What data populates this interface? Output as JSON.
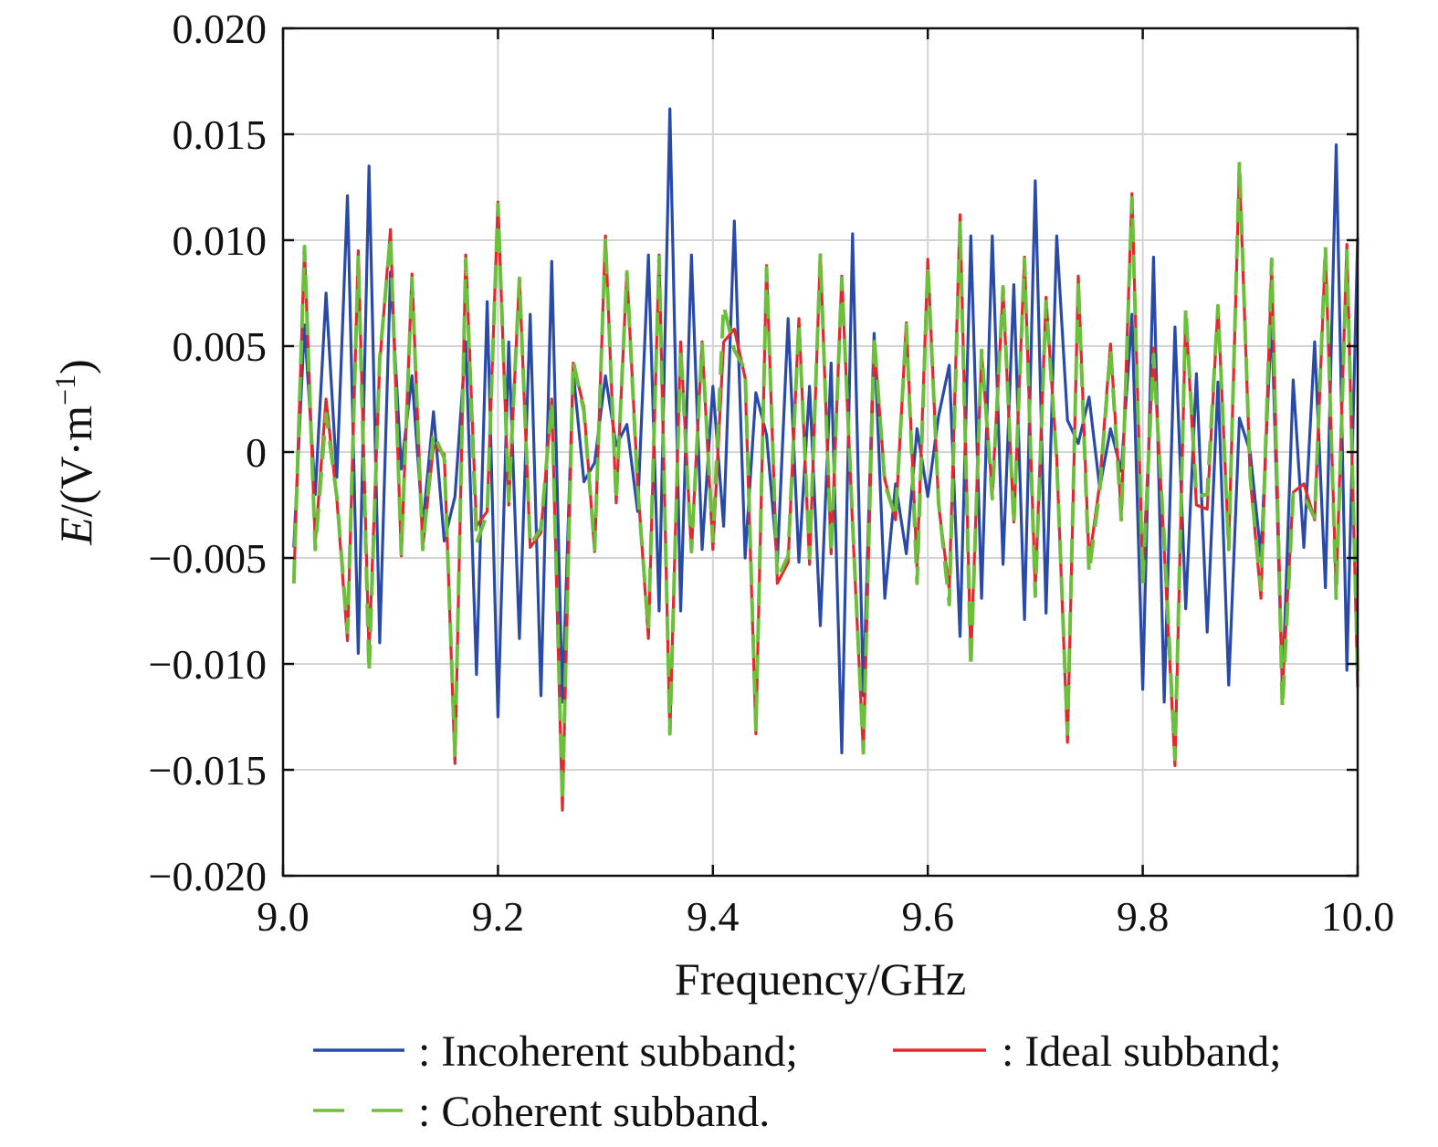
{
  "chart_data": {
    "type": "line",
    "title": "",
    "xlabel": "Frequency/GHz",
    "ylabel": "E/(V·m⁻¹)",
    "ylabel_parts": {
      "symbol": "E",
      "unit_open": "/(V·m",
      "exponent": "−1",
      "unit_close": ")"
    },
    "xlim": [
      9.0,
      10.0
    ],
    "ylim": [
      -0.02,
      0.02
    ],
    "x_ticks": [
      9.0,
      9.2,
      9.4,
      9.6,
      9.8,
      10.0
    ],
    "x_tick_labels": [
      "9.0",
      "9.2",
      "9.4",
      "9.6",
      "9.8",
      "10.0"
    ],
    "y_ticks": [
      0.02,
      0.015,
      0.01,
      0.005,
      0,
      -0.005,
      -0.01,
      -0.015,
      -0.02
    ],
    "y_tick_labels": [
      "0.020",
      "0.015",
      "0.010",
      "0.005",
      "0",
      "−0.005",
      "−0.010",
      "−0.015",
      "−0.020"
    ],
    "grid": true,
    "legend_position": "bottom",
    "x": [
      9.01,
      9.02,
      9.03,
      9.04,
      9.05,
      9.06,
      9.07,
      9.08,
      9.09,
      9.1,
      9.11,
      9.12,
      9.13,
      9.14,
      9.15,
      9.16,
      9.17,
      9.18,
      9.19,
      9.2,
      9.21,
      9.22,
      9.23,
      9.24,
      9.25,
      9.26,
      9.27,
      9.28,
      9.29,
      9.3,
      9.31,
      9.32,
      9.33,
      9.34,
      9.35,
      9.36,
      9.37,
      9.38,
      9.39,
      9.4,
      9.41,
      9.42,
      9.43,
      9.44,
      9.45,
      9.46,
      9.47,
      9.48,
      9.49,
      9.5,
      9.51,
      9.52,
      9.53,
      9.54,
      9.55,
      9.56,
      9.57,
      9.58,
      9.59,
      9.6,
      9.61,
      9.62,
      9.63,
      9.64,
      9.65,
      9.66,
      9.67,
      9.68,
      9.69,
      9.7,
      9.71,
      9.72,
      9.73,
      9.74,
      9.75,
      9.76,
      9.77,
      9.78,
      9.79,
      9.8,
      9.81,
      9.82,
      9.83,
      9.84,
      9.85,
      9.86,
      9.87,
      9.88,
      9.89,
      9.9,
      9.91,
      9.92,
      9.93,
      9.94,
      9.95,
      9.96,
      9.97,
      9.98,
      9.99,
      10.0
    ],
    "series": [
      {
        "name": "Incoherent subband",
        "color": "#2a4aa8",
        "dash": "solid",
        "values": [
          -0.0045,
          0.006,
          -0.002,
          0.0075,
          -0.0012,
          0.0121,
          -0.0095,
          0.0135,
          -0.009,
          0.0085,
          -0.0008,
          0.0036,
          -0.0035,
          0.0019,
          -0.0042,
          -0.0021,
          0.0052,
          -0.0105,
          0.0071,
          -0.0125,
          0.0052,
          -0.0088,
          0.0065,
          -0.0115,
          0.009,
          -0.0118,
          0.0038,
          -0.0014,
          -0.0005,
          0.0036,
          0.0003,
          0.0013,
          -0.0028,
          0.0093,
          -0.0075,
          0.0162,
          -0.0075,
          0.0093,
          -0.0046,
          0.0031,
          -0.0035,
          0.0109,
          -0.005,
          0.0028,
          0.0008,
          -0.0052,
          0.0063,
          -0.0052,
          0.0031,
          -0.0082,
          0.0042,
          -0.0142,
          0.0103,
          -0.0115,
          0.0056,
          -0.0069,
          -0.0015,
          -0.0048,
          0.0011,
          -0.0021,
          0.0017,
          0.0041,
          -0.0087,
          0.0102,
          -0.0069,
          0.0102,
          -0.0053,
          0.0079,
          -0.0079,
          0.0128,
          -0.0076,
          0.0102,
          0.0015,
          0.0004,
          0.0026,
          -0.0017,
          0.0011,
          -0.0009,
          0.0065,
          -0.0112,
          0.0092,
          -0.0118,
          0.0059,
          -0.0074,
          0.0037,
          -0.0085,
          0.0033,
          -0.011,
          0.0016,
          0,
          -0.0049,
          0.0064,
          -0.0113,
          0.0034,
          -0.0045,
          0.0052,
          -0.0064,
          0.0145,
          -0.0103,
          0.0101
        ]
      },
      {
        "name": "Ideal subband",
        "color": "#e02a2e",
        "dash": "solid",
        "values": [
          -0.0062,
          0.0096,
          -0.0043,
          0.0025,
          -0.0022,
          -0.0089,
          0.0095,
          -0.0095,
          0.0042,
          0.0105,
          -0.0049,
          0.0084,
          -0.0045,
          0.0003,
          -0.0001,
          -0.0147,
          0.0093,
          -0.0035,
          -0.0028,
          0.0118,
          -0.0025,
          0.0082,
          -0.0045,
          -0.0038,
          0.0025,
          -0.0169,
          0.0042,
          0.0021,
          -0.0047,
          0.0102,
          -0.0024,
          0.0085,
          -0.0015,
          -0.0088,
          0.0093,
          -0.0133,
          0.0052,
          -0.0047,
          0.0052,
          -0.0046,
          0.0052,
          0.0058,
          0.0035,
          -0.0133,
          0.0088,
          -0.0062,
          -0.0052,
          0.0063,
          -0.0053,
          0.0093,
          -0.0048,
          0.0083,
          -0.0035,
          -0.0142,
          0.0052,
          -0.0013,
          -0.0032,
          0.0061,
          -0.0055,
          0.0091,
          -0.0025,
          -0.0065,
          0.0112,
          -0.0098,
          0.0047,
          -0.0019,
          0.0076,
          -0.0033,
          0.0092,
          -0.0065,
          0.0073,
          -0.0003,
          -0.0137,
          0.0083,
          -0.0052,
          -0.0015,
          0.0051,
          -0.0029,
          0.0122,
          -0.0059,
          0.0049,
          -0.0046,
          -0.0148,
          0.0066,
          -0.0025,
          -0.0027,
          0.0069,
          -0.0045,
          0.0134,
          -0.0012,
          -0.0069,
          0.0088,
          -0.0112,
          -0.0019,
          -0.0015,
          -0.0032,
          0.0095,
          -0.0065,
          0.0098,
          -0.0111
        ]
      },
      {
        "name": "Coherent subband",
        "color": "#6cbf3a",
        "dash": "dashed",
        "values": [
          -0.0062,
          0.0097,
          -0.0046,
          0.0018,
          -0.0021,
          -0.0085,
          0.0092,
          -0.0104,
          0.0044,
          0.0102,
          -0.0048,
          0.0082,
          -0.0046,
          0.0009,
          -0.0003,
          -0.0143,
          0.0091,
          -0.0043,
          -0.0029,
          0.0117,
          -0.0023,
          0.0082,
          -0.0044,
          -0.0036,
          0.0024,
          -0.0165,
          0.0043,
          0.0019,
          -0.0046,
          0.0101,
          -0.0023,
          0.0085,
          -0.0017,
          -0.0084,
          0.0092,
          -0.0133,
          0.0049,
          -0.0047,
          0.0051,
          -0.0042,
          0.0069,
          0.0048,
          0.0039,
          -0.0131,
          0.0087,
          -0.006,
          -0.0049,
          0.0061,
          -0.005,
          0.0093,
          -0.0048,
          0.0082,
          -0.0033,
          -0.0142,
          0.0055,
          -0.0015,
          -0.0031,
          0.006,
          -0.0062,
          0.0088,
          -0.0024,
          -0.0072,
          0.0108,
          -0.0102,
          0.0048,
          -0.0022,
          0.0078,
          -0.0034,
          0.0091,
          -0.0068,
          0.0071,
          -0.0004,
          -0.0133,
          0.0081,
          -0.0057,
          -0.0018,
          0.0049,
          -0.0032,
          0.012,
          -0.0062,
          0.0046,
          -0.0041,
          -0.0145,
          0.0068,
          -0.0021,
          -0.002,
          0.0069,
          -0.0046,
          0.0137,
          -0.0012,
          -0.0065,
          0.0091,
          -0.0121,
          -0.002,
          -0.0021,
          -0.0031,
          0.0097,
          -0.0069,
          0.0095,
          -0.0105
        ]
      }
    ]
  },
  "legend": {
    "entries": [
      {
        "label": ": Incoherent subband;",
        "color": "#2a4aa8",
        "dash": "solid"
      },
      {
        "label": ": Ideal subband;",
        "color": "#e02a2e",
        "dash": "solid"
      },
      {
        "label": ": Coherent subband.",
        "color": "#6cbf3a",
        "dash": "dashed"
      }
    ]
  }
}
